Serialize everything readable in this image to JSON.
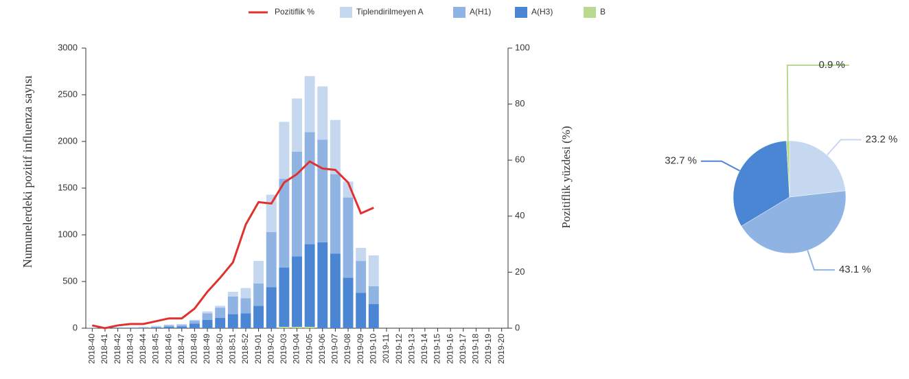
{
  "chart_data": [
    {
      "type": "bar",
      "y_label": "Numunelerdeki pozitif influenza sayısı",
      "y2_label": "Pozitiflik yüzdesi (%)",
      "categories": [
        "2018-40",
        "2018-41",
        "2018-42",
        "2018-43",
        "2018-44",
        "2018-45",
        "2018-46",
        "2018-47",
        "2018-48",
        "2018-49",
        "2018-50",
        "2018-51",
        "2018-52",
        "2019-01",
        "2019-02",
        "2019-03",
        "2019-04",
        "2019-05",
        "2019-06",
        "2019-07",
        "2019-08",
        "2019-09",
        "2019-10",
        "2019-11",
        "2019-12",
        "2019-13",
        "2019-14",
        "2019-15",
        "2019-16",
        "2019-17",
        "2019-18",
        "2019-19",
        "2019-20"
      ],
      "series": [
        {
          "name": "Pozitiflik %",
          "type": "line",
          "axis": "y2",
          "color": "#e0312f",
          "values": [
            1,
            0,
            1,
            1.5,
            1.5,
            2.5,
            3.5,
            3.5,
            7,
            13,
            18,
            23.5,
            37,
            45,
            44.5,
            52,
            55,
            59.5,
            57,
            56.5,
            52,
            41,
            43,
            null,
            null,
            null,
            null,
            null,
            null,
            null,
            null,
            null,
            null
          ]
        },
        {
          "name": "Tiplendirilmeyen A",
          "color": "#c5d8f0",
          "values": [
            2,
            2,
            3,
            3,
            5,
            8,
            10,
            12,
            10,
            20,
            20,
            50,
            110,
            240,
            400,
            610,
            570,
            600,
            570,
            580,
            170,
            140,
            330,
            null,
            null,
            null,
            null,
            null,
            null,
            null,
            null,
            null,
            null
          ]
        },
        {
          "name": "A(H1)",
          "color": "#8fb4e3",
          "values": [
            1,
            1,
            3,
            3,
            5,
            8,
            15,
            15,
            30,
            70,
            110,
            190,
            160,
            240,
            590,
            950,
            1120,
            1200,
            1100,
            850,
            860,
            340,
            190,
            null,
            null,
            null,
            null,
            null,
            null,
            null,
            null,
            null,
            null
          ]
        },
        {
          "name": "A(H3)",
          "color": "#4a86d4",
          "values": [
            2,
            2,
            4,
            4,
            5,
            9,
            15,
            18,
            50,
            90,
            110,
            150,
            160,
            240,
            440,
            635,
            755,
            885,
            920,
            800,
            540,
            380,
            260,
            null,
            null,
            null,
            null,
            null,
            null,
            null,
            null,
            null,
            null
          ]
        },
        {
          "name": "B",
          "color": "#b9d98f",
          "values": [
            0,
            0,
            0,
            0,
            0,
            0,
            0,
            0,
            0,
            0,
            0,
            0,
            0,
            0,
            0,
            15,
            15,
            15,
            0,
            0,
            0,
            0,
            0,
            null,
            null,
            null,
            null,
            null,
            null,
            null,
            null,
            null,
            null
          ]
        }
      ],
      "ylim": [
        0,
        3000
      ],
      "yticks": [
        0,
        500,
        1000,
        1500,
        2000,
        2500,
        3000
      ],
      "y2lim": [
        0,
        100
      ],
      "y2ticks": [
        0,
        20,
        40,
        60,
        80,
        100
      ],
      "grid": false,
      "legend": "top"
    },
    {
      "type": "pie",
      "values": [
        23.2,
        43.1,
        32.7,
        0.9
      ],
      "value_labels": [
        "23.2 %",
        "43.1 %",
        "32.7 %",
        "0.9 %"
      ],
      "colors": [
        "#c5d8f0",
        "#8fb4e3",
        "#4a86d4",
        "#b9d98f"
      ]
    }
  ]
}
